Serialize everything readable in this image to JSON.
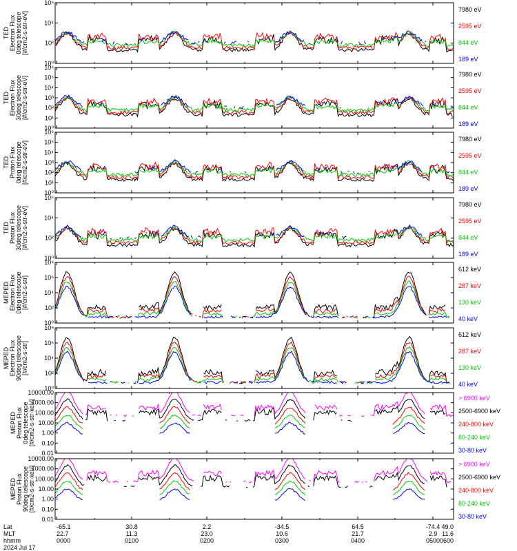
{
  "chart_data": [
    {
      "type": "line",
      "ylabel": [
        "TED",
        "Electron Flux",
        "0deg telescope",
        "[#/cm2-s-str-eV]"
      ],
      "yscale": "log",
      "ylim": [
        1,
        1000000
      ],
      "yticks": [
        {
          "v": 1,
          "t": "10⁰"
        },
        {
          "v": 100,
          "t": "10²"
        },
        {
          "v": 10000,
          "t": "10⁴"
        },
        {
          "v": 1000000,
          "t": "10⁶"
        }
      ],
      "series": [
        {
          "name": "7980 eV",
          "color": "#000000"
        },
        {
          "name": "2595 eV",
          "color": "#ff0000"
        },
        {
          "name": "844 eV",
          "color": "#00cc00"
        },
        {
          "name": "189 eV",
          "color": "#0000ff"
        }
      ]
    },
    {
      "type": "line",
      "ylabel": [
        "TED",
        "Electron Flux",
        "30deg telescope",
        "[#/cm2-s-str-eV]"
      ],
      "yscale": "log",
      "ylim": [
        1,
        1000000
      ],
      "yticks": [
        {
          "v": 1,
          "t": "10⁰"
        },
        {
          "v": 10,
          "t": "10¹"
        },
        {
          "v": 100,
          "t": "10²"
        },
        {
          "v": 1000,
          "t": "10³"
        },
        {
          "v": 10000,
          "t": "10⁴"
        },
        {
          "v": 100000,
          "t": "10⁵"
        },
        {
          "v": 1000000,
          "t": "10⁶"
        }
      ],
      "series": [
        {
          "name": "7980 eV",
          "color": "#000000"
        },
        {
          "name": "2595 eV",
          "color": "#ff0000"
        },
        {
          "name": "844 eV",
          "color": "#00cc00"
        },
        {
          "name": "189 eV",
          "color": "#0000ff"
        }
      ]
    },
    {
      "type": "line",
      "ylabel": [
        "TED",
        "Proton Flux",
        "0deg telescope",
        "[#/cm2-s-str-eV]"
      ],
      "yscale": "log",
      "ylim": [
        1,
        1000000
      ],
      "yticks": [
        {
          "v": 1,
          "t": "10⁰"
        },
        {
          "v": 10,
          "t": "10¹"
        },
        {
          "v": 100,
          "t": "10²"
        },
        {
          "v": 1000,
          "t": "10³"
        },
        {
          "v": 10000,
          "t": "10⁴"
        },
        {
          "v": 100000,
          "t": "10⁵"
        },
        {
          "v": 1000000,
          "t": "10⁶"
        }
      ],
      "series": [
        {
          "name": "7980 eV",
          "color": "#000000"
        },
        {
          "name": "2595 eV",
          "color": "#ff0000"
        },
        {
          "name": "844 eV",
          "color": "#00cc00"
        },
        {
          "name": "189 eV",
          "color": "#0000ff"
        }
      ]
    },
    {
      "type": "line",
      "ylabel": [
        "TED",
        "Proton Flux",
        "30deg telescope",
        "[#/cm2-s-str-eV]"
      ],
      "yscale": "log",
      "ylim": [
        1,
        1000000
      ],
      "yticks": [
        {
          "v": 1,
          "t": "10⁰"
        },
        {
          "v": 100,
          "t": "10²"
        },
        {
          "v": 10000,
          "t": "10⁴"
        },
        {
          "v": 1000000,
          "t": "10⁶"
        }
      ],
      "series": [
        {
          "name": "7980 eV",
          "color": "#000000"
        },
        {
          "name": "2595 eV",
          "color": "#ff0000"
        },
        {
          "name": "844 eV",
          "color": "#00cc00"
        },
        {
          "name": "189 eV",
          "color": "#0000ff"
        }
      ]
    },
    {
      "type": "line",
      "ylabel": [
        "MEPED",
        "Electron Flux",
        "0deg telescope",
        "[#/cm2-s-str]"
      ],
      "yscale": "log",
      "ylim": [
        1,
        100000000
      ],
      "yticks": [
        {
          "v": 1,
          "t": "10⁰"
        },
        {
          "v": 100,
          "t": "10²"
        },
        {
          "v": 10000,
          "t": "10⁴"
        },
        {
          "v": 1000000,
          "t": "10⁶"
        },
        {
          "v": 100000000,
          "t": "10⁸"
        }
      ],
      "series": [
        {
          "name": "612 keV",
          "color": "#000000"
        },
        {
          "name": "287 keV",
          "color": "#ff0000"
        },
        {
          "name": "130 keV",
          "color": "#00cc00"
        },
        {
          "name": "40 keV",
          "color": "#0000ff"
        }
      ]
    },
    {
      "type": "line",
      "ylabel": [
        "MEPED",
        "Electron Flux",
        "90deg telescope",
        "[#/cm2-s-str]"
      ],
      "yscale": "log",
      "ylim": [
        1,
        100000000
      ],
      "yticks": [
        {
          "v": 1,
          "t": "10⁰"
        },
        {
          "v": 100,
          "t": "10²"
        },
        {
          "v": 10000,
          "t": "10⁴"
        },
        {
          "v": 1000000,
          "t": "10⁶"
        },
        {
          "v": 100000000,
          "t": "10⁸"
        }
      ],
      "series": [
        {
          "name": "612 keV",
          "color": "#000000"
        },
        {
          "name": "287 keV",
          "color": "#ff0000"
        },
        {
          "name": "130 keV",
          "color": "#00cc00"
        },
        {
          "name": "40 keV",
          "color": "#0000ff"
        }
      ]
    },
    {
      "type": "line",
      "ylabel": [
        "MEPED",
        "Proton Flux",
        "0deg telescope",
        "[#/cm2-s-str-keV]"
      ],
      "yscale": "log",
      "ylim": [
        0.01,
        10000
      ],
      "yticks": [
        {
          "v": 0.01,
          "t": "0.01"
        },
        {
          "v": 0.1,
          "t": "0.10"
        },
        {
          "v": 1,
          "t": "1.00"
        },
        {
          "v": 10,
          "t": "10.00"
        },
        {
          "v": 100,
          "t": "100.00"
        },
        {
          "v": 1000,
          "t": "1000.00"
        },
        {
          "v": 10000,
          "t": "10000.00"
        }
      ],
      "series": [
        {
          "name": "> 6900 keV",
          "color": "#ff00ff"
        },
        {
          "name": "2500-6900 keV",
          "color": "#000000"
        },
        {
          "name": "240-800 keV",
          "color": "#ff0000"
        },
        {
          "name": "80-240 keV",
          "color": "#00cc00"
        },
        {
          "name": "30-80 keV",
          "color": "#0000ff"
        }
      ]
    },
    {
      "type": "line",
      "ylabel": [
        "MEPED",
        "Proton Flux",
        "90deg telescope",
        "[#/cm2-s-str-keV]"
      ],
      "yscale": "log",
      "ylim": [
        0.01,
        10000
      ],
      "yticks": [
        {
          "v": 0.01,
          "t": "0.01"
        },
        {
          "v": 0.1,
          "t": "0.10"
        },
        {
          "v": 1,
          "t": "1.00"
        },
        {
          "v": 10,
          "t": "10.00"
        },
        {
          "v": 100,
          "t": "100.00"
        },
        {
          "v": 1000,
          "t": "1000.00"
        },
        {
          "v": 10000,
          "t": "10000.00"
        }
      ],
      "series": [
        {
          "name": "> 6900 keV",
          "color": "#ff00ff"
        },
        {
          "name": "2500-6900 keV",
          "color": "#000000"
        },
        {
          "name": "240-800 keV",
          "color": "#ff0000"
        },
        {
          "name": "80-240 keV",
          "color": "#00cc00"
        },
        {
          "name": "30-80 keV",
          "color": "#0000ff"
        }
      ]
    }
  ],
  "x_axis": {
    "row_labels": [
      "Lat",
      "MLT",
      "hhmm"
    ],
    "date": "2024 Jul 17",
    "ticks": [
      {
        "lat": "-65.1",
        "mlt": "22.7",
        "hhmm": "0000"
      },
      {
        "lat": "30.8",
        "mlt": "11.3",
        "hhmm": "0100"
      },
      {
        "lat": "2.2",
        "mlt": "23.0",
        "hhmm": "0200"
      },
      {
        "lat": "-34.5",
        "mlt": "10.6",
        "hhmm": "0300"
      },
      {
        "lat": "64.5",
        "mlt": "21.7",
        "hhmm": "0400"
      },
      {
        "lat": "-74.4",
        "mlt": "2.9",
        "hhmm": "0500"
      },
      {
        "lat": "49.0",
        "mlt": "11.6",
        "hhmm": "0600"
      }
    ]
  }
}
